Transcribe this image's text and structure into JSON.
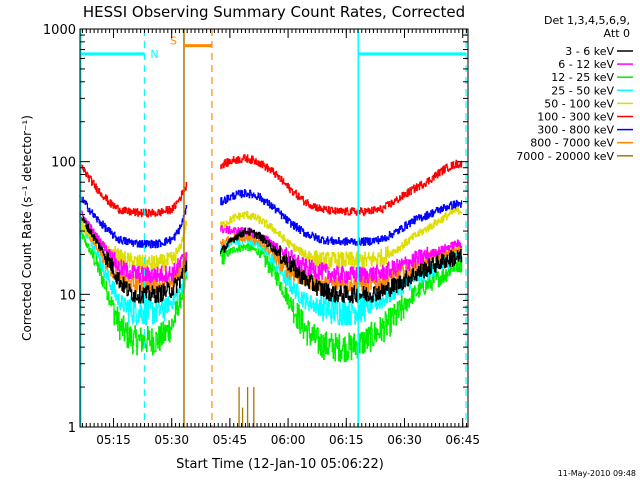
{
  "chart_data": {
    "type": "line",
    "title": "HESSI Observing Summary Count Rates, Corrected",
    "ylabel": "Corrected Count Rate (s⁻¹ detector⁻¹)",
    "xlabel": "Start Time (12-Jan-10 05:06:22)",
    "yscale": "log",
    "ylim": [
      1,
      1000
    ],
    "xlim_minutes_after_start": [
      0,
      100
    ],
    "ytick_values": [
      1,
      10,
      100,
      1000
    ],
    "ytick_labels": [
      "1",
      "10",
      "100",
      "1000"
    ],
    "xticks": [
      {
        "label": "05:15",
        "minutes": 8.63
      },
      {
        "label": "05:30",
        "minutes": 23.63
      },
      {
        "label": "05:45",
        "minutes": 38.63
      },
      {
        "label": "06:00",
        "minutes": 53.63
      },
      {
        "label": "06:15",
        "minutes": 68.63
      },
      {
        "label": "06:30",
        "minutes": 83.63
      },
      {
        "label": "06:45",
        "minutes": 98.63
      }
    ],
    "legend_header": [
      "Det 1,3,4,5,6,9,",
      "Att 0"
    ],
    "legend_position": "top-right, outside plot",
    "gap_minutes": [
      27.7,
      36.3
    ],
    "series": [
      {
        "name": "3 - 6 keV",
        "color": "#000000",
        "points": [
          [
            0,
            40
          ],
          [
            4,
            26
          ],
          [
            8,
            17
          ],
          [
            10,
            13
          ],
          [
            12,
            11
          ],
          [
            14,
            10
          ],
          [
            17,
            10
          ],
          [
            20,
            10
          ],
          [
            22,
            10.5
          ],
          [
            24,
            11
          ],
          [
            26,
            13
          ],
          [
            27.5,
            17
          ],
          [
            36.5,
            21
          ],
          [
            40,
            27
          ],
          [
            43,
            30
          ],
          [
            46,
            28
          ],
          [
            50,
            22
          ],
          [
            54,
            17
          ],
          [
            58,
            13
          ],
          [
            62,
            11
          ],
          [
            66,
            10
          ],
          [
            70,
            10
          ],
          [
            74,
            10
          ],
          [
            78,
            10.5
          ],
          [
            82,
            12
          ],
          [
            86,
            14
          ],
          [
            90,
            16
          ],
          [
            94,
            18
          ],
          [
            97,
            19
          ],
          [
            98.5,
            19
          ]
        ]
      },
      {
        "name": "6 - 12 keV",
        "color": "#ff00ff",
        "points": [
          [
            0,
            42
          ],
          [
            4,
            28
          ],
          [
            8,
            20
          ],
          [
            10,
            16
          ],
          [
            12,
            15
          ],
          [
            16,
            14
          ],
          [
            20,
            14
          ],
          [
            24,
            14.5
          ],
          [
            26,
            17
          ],
          [
            27.5,
            20
          ],
          [
            36.5,
            31
          ],
          [
            40,
            30
          ],
          [
            43,
            30
          ],
          [
            46,
            28
          ],
          [
            50,
            24
          ],
          [
            54,
            19
          ],
          [
            58,
            16
          ],
          [
            62,
            15
          ],
          [
            66,
            14
          ],
          [
            70,
            14
          ],
          [
            74,
            14
          ],
          [
            78,
            14.5
          ],
          [
            82,
            16
          ],
          [
            86,
            18
          ],
          [
            90,
            20
          ],
          [
            94,
            22
          ],
          [
            97,
            24
          ],
          [
            98.5,
            24
          ]
        ]
      },
      {
        "name": "12 - 25 keV",
        "color": "#00ee00",
        "points": [
          [
            0,
            30
          ],
          [
            4,
            18
          ],
          [
            8,
            9
          ],
          [
            10,
            6
          ],
          [
            12,
            5
          ],
          [
            14,
            4.5
          ],
          [
            17,
            4.5
          ],
          [
            20,
            4.5
          ],
          [
            22,
            5
          ],
          [
            24,
            6
          ],
          [
            26,
            9
          ],
          [
            27.5,
            14
          ],
          [
            36.5,
            19
          ],
          [
            40,
            22
          ],
          [
            43,
            23
          ],
          [
            46,
            21
          ],
          [
            50,
            15
          ],
          [
            54,
            9
          ],
          [
            58,
            5.5
          ],
          [
            62,
            4.2
          ],
          [
            66,
            4
          ],
          [
            70,
            4
          ],
          [
            74,
            4.5
          ],
          [
            78,
            5.5
          ],
          [
            82,
            7
          ],
          [
            86,
            10
          ],
          [
            90,
            12
          ],
          [
            94,
            14
          ],
          [
            97,
            17
          ],
          [
            98.5,
            17
          ]
        ]
      },
      {
        "name": "25 - 50 keV",
        "color": "#00ffff",
        "points": [
          [
            0,
            35
          ],
          [
            4,
            22
          ],
          [
            8,
            12
          ],
          [
            10,
            9
          ],
          [
            12,
            8
          ],
          [
            14,
            7.5
          ],
          [
            17,
            7.5
          ],
          [
            20,
            7.5
          ],
          [
            22,
            8
          ],
          [
            24,
            9
          ],
          [
            26,
            11
          ],
          [
            27.5,
            14
          ],
          [
            36.5,
            22
          ],
          [
            40,
            25
          ],
          [
            43,
            26
          ],
          [
            46,
            24
          ],
          [
            50,
            18
          ],
          [
            54,
            12
          ],
          [
            58,
            9
          ],
          [
            62,
            8
          ],
          [
            66,
            7.5
          ],
          [
            70,
            7.5
          ],
          [
            74,
            8
          ],
          [
            78,
            9
          ],
          [
            82,
            11
          ],
          [
            86,
            13
          ],
          [
            90,
            15
          ],
          [
            94,
            17
          ],
          [
            97,
            20
          ],
          [
            98.5,
            20
          ]
        ]
      },
      {
        "name": "50 - 100 keV",
        "color": "#dddd00",
        "points": [
          [
            0,
            34
          ],
          [
            4,
            26
          ],
          [
            8,
            21
          ],
          [
            10,
            19
          ],
          [
            12,
            18
          ],
          [
            16,
            17
          ],
          [
            20,
            17
          ],
          [
            24,
            18
          ],
          [
            26,
            23
          ],
          [
            27.5,
            35
          ],
          [
            36.5,
            33
          ],
          [
            40,
            38
          ],
          [
            43,
            40
          ],
          [
            46,
            37
          ],
          [
            50,
            31
          ],
          [
            54,
            24
          ],
          [
            58,
            20
          ],
          [
            62,
            18
          ],
          [
            66,
            18
          ],
          [
            70,
            18
          ],
          [
            74,
            18
          ],
          [
            78,
            19
          ],
          [
            82,
            22
          ],
          [
            86,
            27
          ],
          [
            90,
            32
          ],
          [
            94,
            38
          ],
          [
            97,
            43
          ],
          [
            98.5,
            43
          ]
        ]
      },
      {
        "name": "100 - 300 keV",
        "color": "#ff0000",
        "points": [
          [
            0,
            95
          ],
          [
            4,
            65
          ],
          [
            8,
            48
          ],
          [
            10,
            44
          ],
          [
            12,
            42
          ],
          [
            16,
            41
          ],
          [
            20,
            41
          ],
          [
            24,
            44
          ],
          [
            26,
            54
          ],
          [
            27.5,
            66
          ],
          [
            36.5,
            95
          ],
          [
            40,
            103
          ],
          [
            43,
            106
          ],
          [
            46,
            100
          ],
          [
            50,
            83
          ],
          [
            54,
            63
          ],
          [
            58,
            50
          ],
          [
            62,
            44
          ],
          [
            66,
            42
          ],
          [
            70,
            42
          ],
          [
            74,
            42
          ],
          [
            78,
            44
          ],
          [
            82,
            52
          ],
          [
            86,
            62
          ],
          [
            90,
            72
          ],
          [
            94,
            88
          ],
          [
            97,
            96
          ],
          [
            98.5,
            96
          ]
        ]
      },
      {
        "name": "300 - 800 keV",
        "color": "#0000ff",
        "points": [
          [
            0,
            55
          ],
          [
            4,
            38
          ],
          [
            8,
            29
          ],
          [
            10,
            26
          ],
          [
            12,
            25
          ],
          [
            16,
            24
          ],
          [
            20,
            24
          ],
          [
            24,
            26
          ],
          [
            26,
            32
          ],
          [
            27.5,
            45
          ],
          [
            36.5,
            50
          ],
          [
            40,
            56
          ],
          [
            43,
            58
          ],
          [
            46,
            55
          ],
          [
            50,
            45
          ],
          [
            54,
            35
          ],
          [
            58,
            29
          ],
          [
            62,
            26
          ],
          [
            66,
            25
          ],
          [
            70,
            25
          ],
          [
            74,
            25
          ],
          [
            78,
            26
          ],
          [
            82,
            30
          ],
          [
            86,
            36
          ],
          [
            90,
            40
          ],
          [
            94,
            45
          ],
          [
            97,
            48
          ],
          [
            98.5,
            48
          ]
        ]
      },
      {
        "name": "800 - 7000 keV",
        "color": "#ff8800",
        "points": [
          [
            0,
            36
          ],
          [
            4,
            24
          ],
          [
            8,
            16
          ],
          [
            10,
            13
          ],
          [
            12,
            12
          ],
          [
            16,
            12
          ],
          [
            20,
            12
          ],
          [
            24,
            12.5
          ],
          [
            26,
            15
          ],
          [
            27.5,
            19
          ],
          [
            36.5,
            24
          ],
          [
            40,
            27
          ],
          [
            43,
            27
          ],
          [
            46,
            25
          ],
          [
            50,
            20
          ],
          [
            54,
            15
          ],
          [
            58,
            13
          ],
          [
            62,
            12
          ],
          [
            66,
            12
          ],
          [
            70,
            12
          ],
          [
            74,
            12
          ],
          [
            78,
            12.5
          ],
          [
            82,
            14
          ],
          [
            86,
            16
          ],
          [
            90,
            18
          ],
          [
            94,
            20
          ],
          [
            97,
            22
          ],
          [
            98.5,
            22
          ]
        ]
      },
      {
        "name": "7000 - 20000 keV",
        "color": "#aa7700",
        "points": []
      }
    ],
    "annotations": {
      "night_label": "N",
      "saa_label": "S",
      "night_level": 650,
      "saa_level": 750,
      "night_intervals": [
        [
          0,
          16.6
        ],
        [
          71.7,
          99.5
        ]
      ],
      "saa_intervals": [
        [
          26.8,
          34.0
        ]
      ],
      "dashed_markers": [
        {
          "minutes": 16.6,
          "color": "#00ffff"
        },
        {
          "minutes": 34.0,
          "color": "#ff8800"
        },
        {
          "minutes": 99.5,
          "color": "#00ffff"
        }
      ],
      "solid_markers": [
        {
          "minutes": 0.2,
          "color": "#00ffff"
        },
        {
          "minutes": 26.8,
          "color": "#aa7700"
        },
        {
          "minutes": 71.7,
          "color": "#00ffff"
        }
      ],
      "spikes_7000": [
        {
          "minutes": 41.0,
          "top": 2.0
        },
        {
          "minutes": 41.9,
          "top": 1.4
        },
        {
          "minutes": 43.2,
          "top": 2.0
        },
        {
          "minutes": 44.8,
          "top": 2.0
        }
      ]
    },
    "footer_date": "11-May-2010 09:48"
  }
}
